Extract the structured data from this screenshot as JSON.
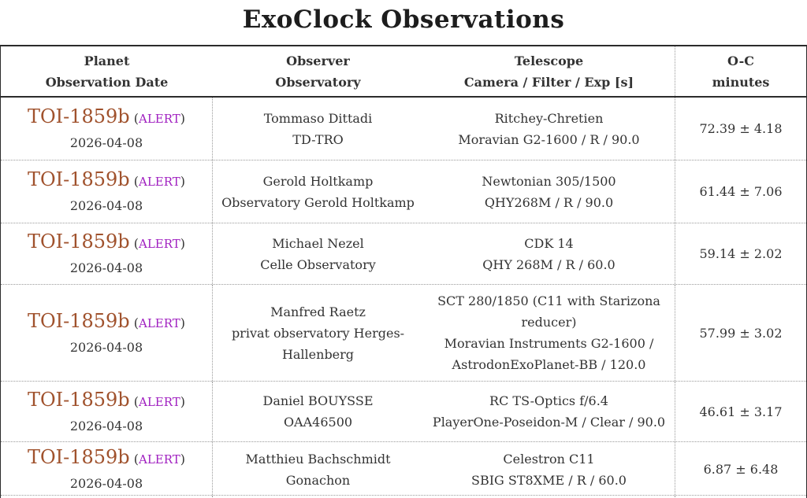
{
  "page": {
    "title": "ExoClock Observations"
  },
  "colors": {
    "planet_link": "#a0522d",
    "alert": "#a020c0",
    "text": "#333333",
    "border_solid": "#2b2b2b",
    "border_dotted": "#9a9a9a"
  },
  "table": {
    "headers": [
      {
        "line1": "Planet",
        "line2": "Observation Date"
      },
      {
        "line1": "Observer",
        "line2": "Observatory"
      },
      {
        "line1": "Telescope",
        "line2": "Camera / Filter / Exp [s]"
      },
      {
        "line1": "O-C",
        "line2": "minutes"
      }
    ],
    "rows": [
      {
        "planet": "TOI-1859b",
        "alert": "ALERT",
        "date": "2026-04-08",
        "observer": "Tommaso Dittadi",
        "observatory": "TD-TRO",
        "telescope": "Ritchey-Chretien",
        "camera": "Moravian G2-1600 / R / 90.0",
        "oc": "72.39 ± 4.18"
      },
      {
        "planet": "TOI-1859b",
        "alert": "ALERT",
        "date": "2026-04-08",
        "observer": "Gerold Holtkamp",
        "observatory": "Observatory Gerold Holtkamp",
        "telescope": "Newtonian 305/1500",
        "camera": "QHY268M / R / 90.0",
        "oc": "61.44 ± 7.06"
      },
      {
        "planet": "TOI-1859b",
        "alert": "ALERT",
        "date": "2026-04-08",
        "observer": "Michael Nezel",
        "observatory": "Celle Observatory",
        "telescope": "CDK 14",
        "camera": "QHY 268M / R / 60.0",
        "oc": "59.14 ± 2.02"
      },
      {
        "planet": "TOI-1859b",
        "alert": "ALERT",
        "date": "2026-04-08",
        "observer": "Manfred Raetz",
        "observatory": "privat observatory Herges-Hallenberg",
        "telescope": "SCT 280/1850 (C11 with Starizona reducer)",
        "camera": "Moravian Instruments G2-1600 / AstrodonExoPlanet-BB / 120.0",
        "oc": "57.99 ± 3.02"
      },
      {
        "planet": "TOI-1859b",
        "alert": "ALERT",
        "date": "2026-04-08",
        "observer": "Daniel BOUYSSE",
        "observatory": "OAA46500",
        "telescope": "RC TS-Optics f/6.4",
        "camera": "PlayerOne-Poseidon-M / Clear / 90.0",
        "oc": "46.61 ± 3.17"
      },
      {
        "planet": "TOI-1859b",
        "alert": "ALERT",
        "date": "2026-04-08",
        "observer": "Matthieu Bachschmidt",
        "observatory": "Gonachon",
        "telescope": "Celestron C11",
        "camera": "SBIG ST8XME / R / 60.0",
        "oc": "6.87 ± 6.48"
      }
    ]
  }
}
